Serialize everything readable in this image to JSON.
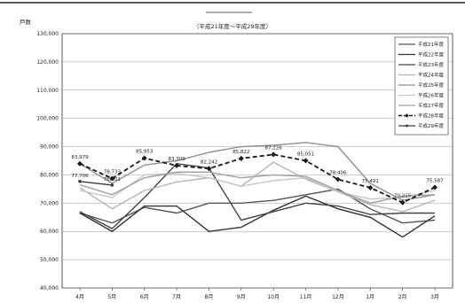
{
  "chart_data": {
    "type": "line",
    "title": "",
    "subtitle": "（平成21年度～平成29年度）",
    "ylabel": "戸数",
    "xlabel": "",
    "ylim": [
      40000,
      130000
    ],
    "y_ticks": [
      "40,000",
      "50,000",
      "60,000",
      "70,000",
      "80,000",
      "90,000",
      "100,000",
      "110,000",
      "120,000",
      "130,000"
    ],
    "y_tick_values": [
      40000,
      50000,
      60000,
      70000,
      80000,
      90000,
      100000,
      110000,
      120000,
      130000
    ],
    "categories": [
      "4月",
      "5月",
      "6月",
      "7月",
      "8月",
      "9月",
      "10月",
      "11月",
      "12月",
      "1月",
      "2月",
      "3月"
    ],
    "grid": true,
    "legend_position": "top-right",
    "series": [
      {
        "name": "平成21年度",
        "color": "#555555",
        "dashed": false,
        "values": [
          66500,
          63000,
          68500,
          66500,
          70000,
          70000,
          71000,
          73000,
          75000,
          68000,
          63000,
          64000
        ]
      },
      {
        "name": "平成22年度",
        "color": "#333333",
        "dashed": false,
        "values": [
          66500,
          60000,
          69000,
          69000,
          60000,
          61500,
          67500,
          72500,
          68000,
          65000,
          58000,
          65500
        ]
      },
      {
        "name": "平成23年度",
        "color": "#444444",
        "dashed": false,
        "values": [
          67000,
          61000,
          72000,
          84000,
          82500,
          64000,
          67000,
          70000,
          69000,
          66000,
          66500,
          66500
        ]
      },
      {
        "name": "平成24年度",
        "color": "#b5b5b5",
        "dashed": false,
        "values": [
          75500,
          68000,
          74500,
          77500,
          79000,
          76000,
          84500,
          78500,
          74000,
          69500,
          67000,
          71000
        ]
      },
      {
        "name": "平成25年度",
        "color": "#909090",
        "dashed": false,
        "values": [
          84000,
          77000,
          83500,
          85000,
          88000,
          90000,
          90500,
          91500,
          90000,
          77000,
          71000,
          73000
        ]
      },
      {
        "name": "平成26年度",
        "color": "#c8c8c8",
        "dashed": false,
        "values": [
          74500,
          72000,
          80000,
          80500,
          79000,
          76000,
          78000,
          79000,
          74000,
          71500,
          72000,
          74500
        ]
      },
      {
        "name": "平成27年度",
        "color": "#a0a0a0",
        "dashed": false,
        "values": [
          76500,
          73000,
          79000,
          81000,
          81000,
          79000,
          80000,
          79500,
          74500,
          70000,
          72500,
          73000
        ]
      },
      {
        "name": "平成28年度",
        "color": "#1a1a1a",
        "dashed": true,
        "markers": true,
        "values": [
          83979,
          78733,
          85953,
          83309,
          82242,
          85822,
          87226,
          85051,
          78406,
          75491,
          70215,
          75587
        ],
        "labels": [
          "83,979",
          "78,733",
          "85,953",
          "83,309",
          "82,242",
          "85,822",
          "87,226",
          "85,051",
          "78,406",
          "75,491",
          "70,215",
          "75,587"
        ]
      },
      {
        "name": "平成29年度",
        "color": "#3c3c3c",
        "dashed": false,
        "markers": true,
        "values": [
          77706,
          76401,
          null,
          null,
          null,
          null,
          null,
          null,
          null,
          null,
          null,
          null
        ],
        "labels": [
          "77,706",
          "76,401"
        ]
      }
    ]
  }
}
